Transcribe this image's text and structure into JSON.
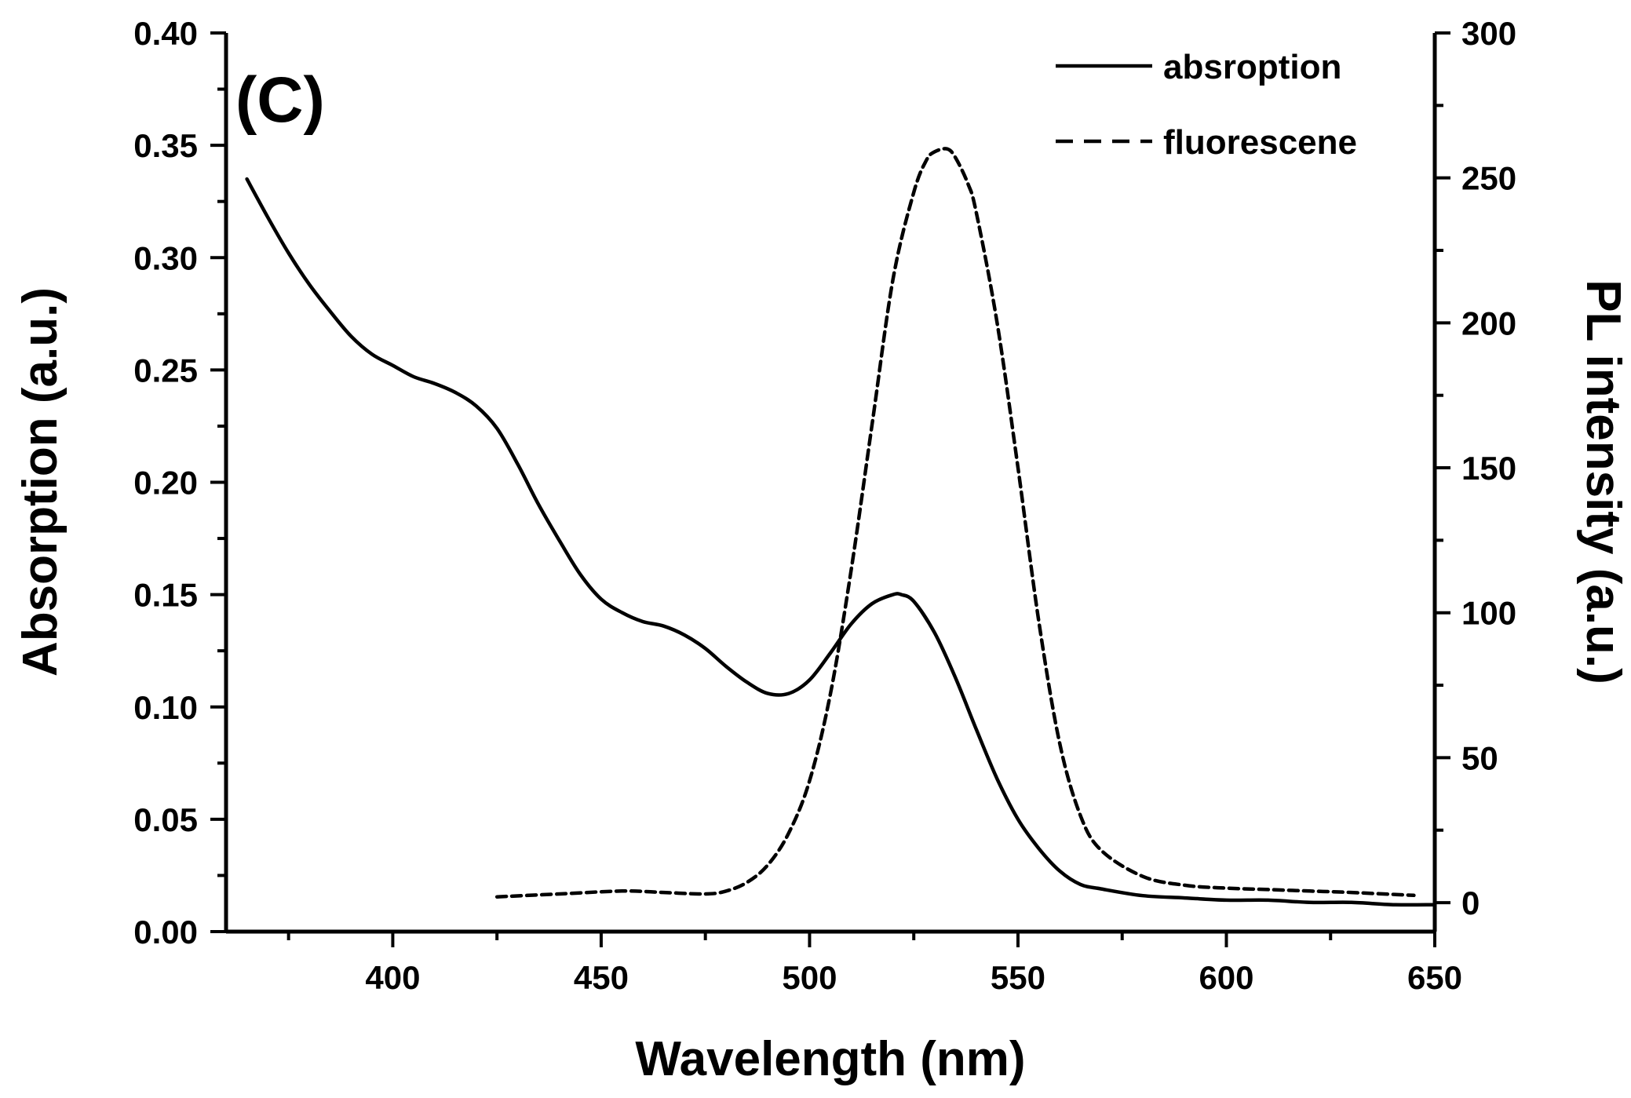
{
  "chart_data": {
    "type": "line",
    "panel_label": "(C)",
    "xlabel": "Wavelength (nm)",
    "ylabel_left": "Absorption (a.u.)",
    "ylabel_right": "PL intensity (a.u.)",
    "xlim": [
      360,
      650
    ],
    "ylim_left": [
      0.0,
      0.4
    ],
    "ylim_right": [
      -10,
      300
    ],
    "x_ticks": [
      400,
      450,
      500,
      550,
      600,
      650
    ],
    "x_tick_labels": [
      "400",
      "450",
      "500",
      "550",
      "600",
      "650"
    ],
    "y_left_ticks": [
      0.0,
      0.05,
      0.1,
      0.15,
      0.2,
      0.25,
      0.3,
      0.35,
      0.4
    ],
    "y_left_tick_labels": [
      "0.00",
      "0.05",
      "0.10",
      "0.15",
      "0.20",
      "0.25",
      "0.30",
      "0.35",
      "0.40"
    ],
    "y_right_ticks": [
      0,
      50,
      100,
      150,
      200,
      250,
      300
    ],
    "y_right_tick_labels": [
      "0",
      "50",
      "100",
      "150",
      "200",
      "250",
      "300"
    ],
    "legend_position": "top-right",
    "series": [
      {
        "name": "absroption",
        "axis": "left",
        "style": "solid",
        "x": [
          365,
          370,
          375,
          380,
          385,
          390,
          395,
          400,
          405,
          410,
          415,
          420,
          425,
          430,
          435,
          440,
          445,
          450,
          455,
          460,
          465,
          470,
          475,
          480,
          485,
          490,
          495,
          500,
          505,
          510,
          515,
          520,
          522,
          525,
          530,
          535,
          540,
          545,
          550,
          555,
          560,
          565,
          570,
          580,
          590,
          600,
          610,
          620,
          630,
          640,
          650
        ],
        "y": [
          0.335,
          0.318,
          0.302,
          0.288,
          0.276,
          0.265,
          0.257,
          0.252,
          0.247,
          0.244,
          0.24,
          0.234,
          0.224,
          0.208,
          0.19,
          0.174,
          0.159,
          0.148,
          0.142,
          0.138,
          0.136,
          0.132,
          0.126,
          0.118,
          0.111,
          0.106,
          0.106,
          0.112,
          0.124,
          0.137,
          0.146,
          0.15,
          0.15,
          0.147,
          0.133,
          0.113,
          0.09,
          0.068,
          0.05,
          0.037,
          0.027,
          0.021,
          0.019,
          0.016,
          0.015,
          0.014,
          0.014,
          0.013,
          0.013,
          0.012,
          0.012
        ]
      },
      {
        "name": "fluorescene",
        "axis": "right",
        "style": "dashed",
        "x": [
          425,
          440,
          455,
          465,
          475,
          480,
          485,
          490,
          495,
          500,
          505,
          510,
          515,
          520,
          525,
          528,
          530,
          533,
          535,
          538,
          540,
          545,
          550,
          555,
          560,
          565,
          570,
          580,
          590,
          600,
          610,
          620,
          630,
          645
        ],
        "y": [
          2,
          3,
          4,
          3.5,
          3,
          4,
          7,
          13,
          24,
          42,
          72,
          115,
          165,
          215,
          245,
          256,
          259,
          260,
          257,
          248,
          238,
          200,
          150,
          97,
          55,
          30,
          18,
          9,
          6,
          5,
          4.5,
          4,
          3.5,
          2.5
        ]
      }
    ]
  }
}
